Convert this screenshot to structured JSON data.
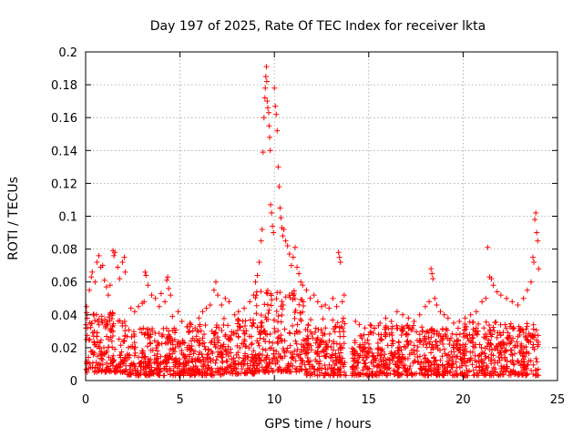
{
  "chart_data": {
    "type": "scatter",
    "title": "Day 197 of 2025, Rate Of TEC Index for receiver lkta",
    "xlabel": "GPS time / hours",
    "ylabel": "ROTI / TECUs",
    "xlim": [
      0,
      25
    ],
    "ylim": [
      0,
      0.2
    ],
    "xticks": [
      0,
      5,
      10,
      15,
      20,
      25
    ],
    "yticks": [
      0,
      0.02,
      0.04,
      0.06,
      0.08,
      0.1,
      0.12,
      0.14,
      0.16,
      0.18,
      0.2
    ],
    "grid": true,
    "marker": "+",
    "color": "#ff0000",
    "series": [
      {
        "name": "ROTI",
        "points": [
          [
            0.05,
            0.045
          ],
          [
            0.1,
            0.032
          ],
          [
            0.2,
            0.055
          ],
          [
            0.3,
            0.063
          ],
          [
            0.35,
            0.066
          ],
          [
            0.5,
            0.06
          ],
          [
            0.6,
            0.072
          ],
          [
            0.7,
            0.076
          ],
          [
            0.8,
            0.069
          ],
          [
            0.9,
            0.07
          ],
          [
            1.0,
            0.061
          ],
          [
            1.1,
            0.057
          ],
          [
            1.2,
            0.052
          ],
          [
            1.3,
            0.058
          ],
          [
            1.45,
            0.079
          ],
          [
            1.5,
            0.076
          ],
          [
            1.55,
            0.078
          ],
          [
            1.7,
            0.069
          ],
          [
            1.8,
            0.062
          ],
          [
            1.95,
            0.072
          ],
          [
            2.05,
            0.075
          ],
          [
            2.1,
            0.066
          ],
          [
            2.4,
            0.044
          ],
          [
            2.6,
            0.042
          ],
          [
            2.8,
            0.045
          ],
          [
            3.0,
            0.047
          ],
          [
            3.1,
            0.048
          ],
          [
            3.15,
            0.066
          ],
          [
            3.2,
            0.064
          ],
          [
            3.3,
            0.058
          ],
          [
            3.5,
            0.052
          ],
          [
            3.7,
            0.05
          ],
          [
            3.9,
            0.045
          ],
          [
            4.0,
            0.053
          ],
          [
            4.2,
            0.048
          ],
          [
            4.3,
            0.061
          ],
          [
            4.35,
            0.063
          ],
          [
            4.4,
            0.056
          ],
          [
            4.5,
            0.052
          ],
          [
            4.6,
            0.039
          ],
          [
            4.9,
            0.042
          ],
          [
            5.1,
            0.036
          ],
          [
            5.5,
            0.03
          ],
          [
            5.8,
            0.032
          ],
          [
            6.0,
            0.038
          ],
          [
            6.2,
            0.042
          ],
          [
            6.4,
            0.044
          ],
          [
            6.6,
            0.046
          ],
          [
            6.8,
            0.055
          ],
          [
            6.9,
            0.06
          ],
          [
            7.0,
            0.052
          ],
          [
            7.2,
            0.046
          ],
          [
            7.4,
            0.05
          ],
          [
            7.6,
            0.048
          ],
          [
            7.9,
            0.04
          ],
          [
            8.1,
            0.042
          ],
          [
            8.4,
            0.044
          ],
          [
            8.7,
            0.048
          ],
          [
            8.9,
            0.052
          ],
          [
            9.0,
            0.06
          ],
          [
            9.1,
            0.064
          ],
          [
            9.2,
            0.072
          ],
          [
            9.3,
            0.085
          ],
          [
            9.35,
            0.092
          ],
          [
            9.4,
            0.139
          ],
          [
            9.45,
            0.16
          ],
          [
            9.5,
            0.172
          ],
          [
            9.52,
            0.178
          ],
          [
            9.55,
            0.185
          ],
          [
            9.58,
            0.191
          ],
          [
            9.6,
            0.182
          ],
          [
            9.62,
            0.17
          ],
          [
            9.65,
            0.166
          ],
          [
            9.7,
            0.163
          ],
          [
            9.72,
            0.155
          ],
          [
            9.75,
            0.148
          ],
          [
            9.78,
            0.14
          ],
          [
            9.8,
            0.107
          ],
          [
            9.85,
            0.102
          ],
          [
            9.9,
            0.094
          ],
          [
            9.95,
            0.09
          ],
          [
            10.0,
            0.178
          ],
          [
            10.05,
            0.167
          ],
          [
            10.1,
            0.162
          ],
          [
            10.15,
            0.152
          ],
          [
            10.2,
            0.13
          ],
          [
            10.25,
            0.118
          ],
          [
            10.3,
            0.105
          ],
          [
            10.35,
            0.099
          ],
          [
            10.4,
            0.093
          ],
          [
            10.45,
            0.088
          ],
          [
            10.5,
            0.092
          ],
          [
            10.6,
            0.085
          ],
          [
            10.7,
            0.082
          ],
          [
            10.8,
            0.077
          ],
          [
            10.9,
            0.07
          ],
          [
            11.0,
            0.075
          ],
          [
            11.1,
            0.081
          ],
          [
            11.2,
            0.069
          ],
          [
            11.3,
            0.065
          ],
          [
            11.4,
            0.06
          ],
          [
            11.5,
            0.058
          ],
          [
            11.7,
            0.055
          ],
          [
            11.9,
            0.05
          ],
          [
            12.1,
            0.052
          ],
          [
            12.3,
            0.048
          ],
          [
            12.5,
            0.045
          ],
          [
            12.7,
            0.046
          ],
          [
            12.9,
            0.044
          ],
          [
            13.1,
            0.05
          ],
          [
            13.3,
            0.045
          ],
          [
            13.4,
            0.078
          ],
          [
            13.45,
            0.075
          ],
          [
            13.5,
            0.072
          ],
          [
            13.6,
            0.048
          ],
          [
            13.7,
            0.052
          ],
          [
            14.3,
            0.036
          ],
          [
            14.5,
            0.034
          ],
          [
            14.8,
            0.032
          ],
          [
            15.0,
            0.028
          ],
          [
            15.3,
            0.032
          ],
          [
            15.6,
            0.035
          ],
          [
            15.9,
            0.038
          ],
          [
            16.2,
            0.036
          ],
          [
            16.5,
            0.042
          ],
          [
            16.8,
            0.04
          ],
          [
            17.1,
            0.038
          ],
          [
            17.4,
            0.036
          ],
          [
            17.7,
            0.04
          ],
          [
            18.0,
            0.045
          ],
          [
            18.2,
            0.048
          ],
          [
            18.3,
            0.068
          ],
          [
            18.35,
            0.065
          ],
          [
            18.4,
            0.062
          ],
          [
            18.5,
            0.05
          ],
          [
            18.6,
            0.046
          ],
          [
            18.8,
            0.042
          ],
          [
            19.0,
            0.04
          ],
          [
            19.2,
            0.038
          ],
          [
            19.5,
            0.035
          ],
          [
            19.8,
            0.036
          ],
          [
            20.1,
            0.038
          ],
          [
            20.4,
            0.04
          ],
          [
            20.7,
            0.042
          ],
          [
            21.0,
            0.048
          ],
          [
            21.2,
            0.05
          ],
          [
            21.3,
            0.081
          ],
          [
            21.4,
            0.063
          ],
          [
            21.5,
            0.062
          ],
          [
            21.6,
            0.058
          ],
          [
            21.8,
            0.054
          ],
          [
            22.0,
            0.052
          ],
          [
            22.3,
            0.05
          ],
          [
            22.6,
            0.048
          ],
          [
            22.9,
            0.046
          ],
          [
            23.2,
            0.05
          ],
          [
            23.4,
            0.055
          ],
          [
            23.6,
            0.06
          ],
          [
            23.7,
            0.075
          ],
          [
            23.75,
            0.072
          ],
          [
            23.8,
            0.098
          ],
          [
            23.85,
            0.102
          ],
          [
            23.9,
            0.09
          ],
          [
            23.95,
            0.085
          ],
          [
            24.0,
            0.068
          ]
        ],
        "bands": [
          {
            "x": [
              0.0,
              2.2
            ],
            "y": [
              0.005,
              0.042
            ]
          },
          {
            "x": [
              2.2,
              4.8
            ],
            "y": [
              0.003,
              0.033
            ]
          },
          {
            "x": [
              4.8,
              5.3
            ],
            "y": [
              0.003,
              0.025
            ]
          },
          {
            "x": [
              5.3,
              7.2
            ],
            "y": [
              0.003,
              0.035
            ]
          },
          {
            "x": [
              7.2,
              9.0
            ],
            "y": [
              0.004,
              0.038
            ]
          },
          {
            "x": [
              9.0,
              11.6
            ],
            "y": [
              0.005,
              0.055
            ]
          },
          {
            "x": [
              11.6,
              13.8
            ],
            "y": [
              0.003,
              0.038
            ]
          },
          {
            "x": [
              14.1,
              15.0
            ],
            "y": [
              0.003,
              0.028
            ]
          },
          {
            "x": [
              15.0,
              18.2
            ],
            "y": [
              0.003,
              0.034
            ]
          },
          {
            "x": [
              18.2,
              20.0
            ],
            "y": [
              0.003,
              0.032
            ]
          },
          {
            "x": [
              20.0,
              22.5
            ],
            "y": [
              0.003,
              0.036
            ]
          },
          {
            "x": [
              22.5,
              24.0
            ],
            "y": [
              0.003,
              0.035
            ]
          }
        ]
      }
    ]
  }
}
